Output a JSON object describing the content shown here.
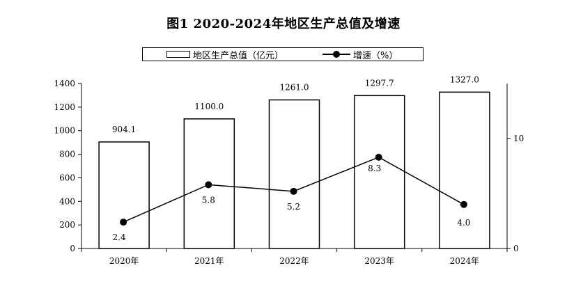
{
  "chart_data": {
    "type": "bar",
    "title": "图1  2020-2024年地区生产总值及增速",
    "categories": [
      "2020年",
      "2021年",
      "2022年",
      "2023年",
      "2024年"
    ],
    "series": [
      {
        "name": "地区生产总值（亿元）",
        "type": "bar",
        "axis": "left",
        "values": [
          904.1,
          1100.0,
          1261.0,
          1297.7,
          1327.0
        ],
        "labels": [
          "904.1",
          "1100.0",
          "1261.0",
          "1297.7",
          "1327.0"
        ]
      },
      {
        "name": "增速（%）",
        "type": "line",
        "axis": "right",
        "values": [
          2.4,
          5.8,
          5.2,
          8.3,
          4.0
        ],
        "labels": [
          "2.4",
          "5.8",
          "5.2",
          "8.3",
          "4.0"
        ]
      }
    ],
    "y_left": {
      "range": [
        0,
        1400
      ],
      "ticks": [
        "0",
        "200",
        "400",
        "600",
        "800",
        "1000",
        "1200",
        "1400"
      ]
    },
    "y_right": {
      "range": [
        0,
        15
      ],
      "ticks": [
        "0",
        "10"
      ]
    },
    "grid": false,
    "legend_position": "top",
    "colors": {
      "bar_fill": "#ffffff",
      "bar_stroke": "#000000",
      "line": "#000000",
      "marker": "#000000"
    }
  }
}
